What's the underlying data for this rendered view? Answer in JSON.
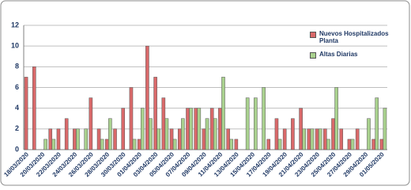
{
  "chart_data": {
    "type": "bar",
    "categories": [
      "18/03/2020",
      null,
      "20/03/2020",
      null,
      "22/03/2020",
      null,
      "24/03/2020",
      null,
      "26/03/2020",
      null,
      "28/03/2020",
      null,
      "30/03/2020",
      null,
      "01/04/2020",
      null,
      "03/04/2020",
      null,
      "05/04/2020",
      null,
      "07/04/2020",
      null,
      "09/04/2020",
      null,
      "11/04/2020",
      null,
      "13/04/2020",
      null,
      "15/04/2020",
      null,
      "17/04/2020",
      null,
      "19/04/2020",
      null,
      "21/04/2020",
      null,
      "23/04/2020",
      null,
      "25/04/2020",
      null,
      "27/04/2020",
      null,
      "29/04/2020",
      null,
      "01/05/2020"
    ],
    "series": [
      {
        "name": "Nuevos Hospitalizados Planta",
        "color": "#d9696a",
        "values": [
          7,
          8,
          0,
          2,
          2,
          3,
          2,
          0,
          5,
          2,
          1,
          2,
          4,
          6,
          1,
          10,
          7,
          5,
          2,
          2,
          4,
          4,
          2,
          4,
          4,
          2,
          1,
          0,
          0,
          0,
          1,
          3,
          2,
          3,
          4,
          2,
          2,
          2,
          3,
          2,
          1,
          2,
          0,
          1,
          1
        ]
      },
      {
        "name": "Altas Diarias",
        "color": "#a9d18e",
        "values": [
          0,
          0,
          1,
          1,
          0,
          0,
          2,
          2,
          0,
          1,
          3,
          0,
          0,
          1,
          4,
          3,
          2,
          3,
          1,
          3,
          4,
          4,
          3,
          3,
          7,
          1,
          0,
          5,
          5,
          6,
          0,
          1,
          0,
          0,
          2,
          2,
          2,
          1,
          6,
          0,
          1,
          0,
          3,
          5,
          4
        ]
      }
    ],
    "ylim": [
      0,
      12
    ],
    "yticks": [
      0,
      2,
      4,
      6,
      8,
      10,
      12
    ],
    "grid": true,
    "legend": "top-right"
  }
}
